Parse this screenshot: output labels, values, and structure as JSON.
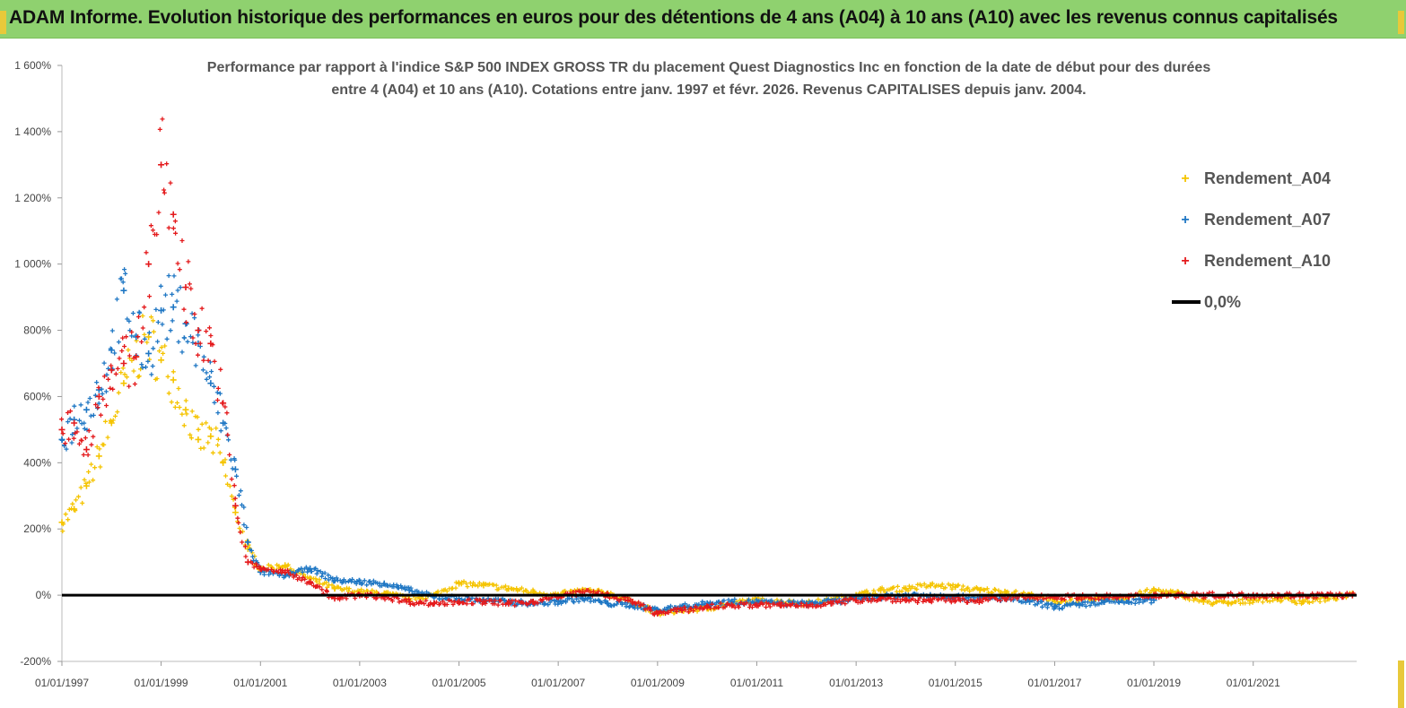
{
  "header": {
    "title": "ADAM Informe. Evolution historique des performances en euros pour des détentions de 4 ans (A04) à 10 ans (A10) avec les revenus connus capitalisés"
  },
  "colors": {
    "header_bg": "#8fd16f",
    "A04": "#f5c400",
    "A07": "#1f77c4",
    "A10": "#e41a1c",
    "zero": "#000000"
  },
  "chart_data": {
    "type": "scatter",
    "title": "Performance par rapport à l'indice S&P 500 INDEX GROSS TR  du placement Quest Diagnostics Inc en fonction de la date de début pour des durées entre 4 (A04) et 10 ans (A10).  Cotations entre janv. 1997 et févr. 2026. Revenus  CAPITALISES depuis janv. 2004.",
    "title_lines": [
      "Performance par rapport à l'indice S&P 500 INDEX GROSS TR  du placement Quest Diagnostics Inc en fonction de la date de début pour des durées",
      "entre 4 (A04) et 10 ans (A10).  Cotations entre janv. 1997 et févr. 2026. Revenus  CAPITALISES depuis janv. 2004."
    ],
    "xlabel": "",
    "ylabel": "",
    "x_range": [
      "1997-01-01",
      "2023-02-01"
    ],
    "ylim": [
      -200,
      1600
    ],
    "y_ticks": [
      -200,
      0,
      200,
      400,
      600,
      800,
      1000,
      1200,
      1400,
      1600
    ],
    "y_tick_labels": [
      "-200%",
      "0%",
      "200%",
      "400%",
      "600%",
      "800%",
      "1 000%",
      "1 200%",
      "1 400%",
      "1 600%"
    ],
    "x_ticks": [
      "1997-01-01",
      "1999-01-01",
      "2001-01-01",
      "2003-01-01",
      "2005-01-01",
      "2007-01-01",
      "2009-01-01",
      "2011-01-01",
      "2013-01-01",
      "2015-01-01",
      "2017-01-01",
      "2019-01-01",
      "2021-01-01"
    ],
    "x_tick_labels": [
      "01/01/1997",
      "01/01/1999",
      "01/01/2001",
      "01/01/2003",
      "01/01/2005",
      "01/01/2007",
      "01/01/2009",
      "01/01/2011",
      "01/01/2013",
      "01/01/2015",
      "01/01/2017",
      "01/01/2019",
      "01/01/2021"
    ],
    "grid": false,
    "legend_position": "top-right",
    "series": [
      {
        "name": "Rendement_A04",
        "marker": "+",
        "x": [
          "1997-01-01",
          "1997-04-01",
          "1997-07-01",
          "1997-10-01",
          "1998-01-01",
          "1998-04-01",
          "1998-07-01",
          "1998-10-01",
          "1999-01-01",
          "1999-04-01",
          "1999-07-01",
          "1999-10-01",
          "2000-01-01",
          "2000-04-01",
          "2000-07-01",
          "2000-10-01",
          "2001-01-01",
          "2001-07-01",
          "2002-01-01",
          "2002-07-01",
          "2003-01-01",
          "2003-07-01",
          "2004-01-01",
          "2004-07-01",
          "2005-01-01",
          "2005-07-01",
          "2006-01-01",
          "2006-07-01",
          "2007-01-01",
          "2007-07-01",
          "2008-01-01",
          "2008-07-01",
          "2009-01-01",
          "2009-07-01",
          "2010-01-01",
          "2010-07-01",
          "2011-01-01",
          "2011-07-01",
          "2012-01-01",
          "2012-07-01",
          "2013-01-01",
          "2013-07-01",
          "2014-01-01",
          "2014-07-01",
          "2015-01-01",
          "2015-07-01",
          "2016-01-01",
          "2016-07-01",
          "2017-01-01",
          "2017-07-01",
          "2018-01-01",
          "2018-07-01",
          "2019-01-01",
          "2019-07-01",
          "2020-01-01",
          "2020-07-01",
          "2021-01-01",
          "2021-07-01",
          "2022-01-01",
          "2022-07-01",
          "2023-01-01"
        ],
        "y": [
          220,
          260,
          330,
          420,
          520,
          640,
          720,
          780,
          710,
          650,
          560,
          470,
          480,
          400,
          250,
          140,
          80,
          90,
          50,
          20,
          10,
          5,
          -10,
          0,
          35,
          30,
          20,
          10,
          0,
          15,
          5,
          -20,
          -55,
          -45,
          -40,
          -25,
          -15,
          -20,
          -25,
          -15,
          0,
          15,
          20,
          30,
          25,
          15,
          10,
          0,
          -20,
          -15,
          -10,
          -5,
          15,
          5,
          -20,
          -25,
          -15,
          -10,
          -20,
          -10,
          0
        ]
      },
      {
        "name": "Rendement_A07",
        "marker": "+",
        "x": [
          "1997-01-01",
          "1997-04-01",
          "1997-07-01",
          "1997-10-01",
          "1998-01-01",
          "1998-04-01",
          "1998-07-01",
          "1998-10-01",
          "1999-01-01",
          "1999-04-01",
          "1999-07-01",
          "1999-10-01",
          "2000-01-01",
          "2000-04-01",
          "2000-07-01",
          "2000-10-01",
          "2001-01-01",
          "2001-07-01",
          "2002-01-01",
          "2002-07-01",
          "2003-01-01",
          "2003-07-01",
          "2004-01-01",
          "2004-07-01",
          "2005-01-01",
          "2005-07-01",
          "2006-01-01",
          "2006-07-01",
          "2007-01-01",
          "2007-07-01",
          "2008-01-01",
          "2008-07-01",
          "2009-01-01",
          "2009-07-01",
          "2010-01-01",
          "2010-07-01",
          "2011-01-01",
          "2011-07-01",
          "2012-01-01",
          "2012-07-01",
          "2013-01-01",
          "2013-07-01",
          "2014-01-01",
          "2014-07-01",
          "2015-01-01",
          "2015-07-01",
          "2016-01-01",
          "2016-07-01",
          "2017-01-01",
          "2017-07-01",
          "2018-01-01",
          "2018-07-01",
          "2019-01-01"
        ],
        "y": [
          470,
          530,
          560,
          620,
          740,
          920,
          780,
          730,
          860,
          870,
          820,
          760,
          640,
          520,
          380,
          160,
          70,
          60,
          80,
          45,
          40,
          35,
          15,
          -5,
          -10,
          -15,
          -20,
          -25,
          -20,
          -10,
          -25,
          -30,
          -45,
          -35,
          -25,
          -20,
          -20,
          -25,
          -25,
          -20,
          -10,
          -5,
          0,
          0,
          -5,
          -10,
          -10,
          -20,
          -35,
          -30,
          -20,
          -20,
          -15
        ]
      },
      {
        "name": "Rendement_A10",
        "marker": "+",
        "x": [
          "1997-01-01",
          "1997-04-01",
          "1997-07-01",
          "1997-10-01",
          "1998-01-01",
          "1998-04-01",
          "1998-07-01",
          "1998-10-01",
          "1999-01-01",
          "1999-04-01",
          "1999-07-01",
          "1999-10-01",
          "2000-01-01",
          "2000-04-01",
          "2000-07-01",
          "2000-10-01",
          "2001-01-01",
          "2001-07-01",
          "2002-01-01",
          "2002-07-01",
          "2003-01-01",
          "2003-07-01",
          "2004-01-01",
          "2004-07-01",
          "2005-01-01",
          "2005-07-01",
          "2006-01-01",
          "2006-07-01",
          "2007-01-01",
          "2007-07-01",
          "2008-01-01",
          "2008-07-01",
          "2009-01-01",
          "2009-07-01",
          "2010-01-01",
          "2010-07-01",
          "2011-01-01",
          "2011-07-01",
          "2012-01-01",
          "2012-07-01",
          "2013-01-01",
          "2013-07-01",
          "2014-01-01",
          "2014-07-01",
          "2015-01-01",
          "2015-07-01",
          "2016-01-01",
          "2016-07-01",
          "2017-01-01",
          "2017-07-01",
          "2018-01-01",
          "2018-07-01",
          "2019-01-01",
          "2019-07-01",
          "2020-01-01",
          "2020-07-01",
          "2021-01-01",
          "2021-07-01",
          "2022-01-01",
          "2022-07-01",
          "2023-01-01"
        ],
        "y": [
          500,
          520,
          440,
          600,
          680,
          700,
          720,
          1000,
          1300,
          1150,
          930,
          800,
          760,
          580,
          270,
          100,
          80,
          70,
          40,
          -10,
          0,
          -5,
          -20,
          -25,
          -20,
          -20,
          -25,
          -20,
          -5,
          10,
          0,
          -20,
          -55,
          -45,
          -35,
          -30,
          -30,
          -30,
          -30,
          -25,
          -15,
          -10,
          -15,
          -15,
          -15,
          -15,
          -10,
          -5,
          -5,
          -5,
          -5,
          -5,
          0,
          0,
          0,
          0,
          0,
          0,
          0,
          0,
          0
        ]
      },
      {
        "name": "0,0%",
        "marker": "line",
        "x": [
          "1997-01-01",
          "2023-02-01"
        ],
        "y": [
          0,
          0
        ]
      }
    ]
  }
}
